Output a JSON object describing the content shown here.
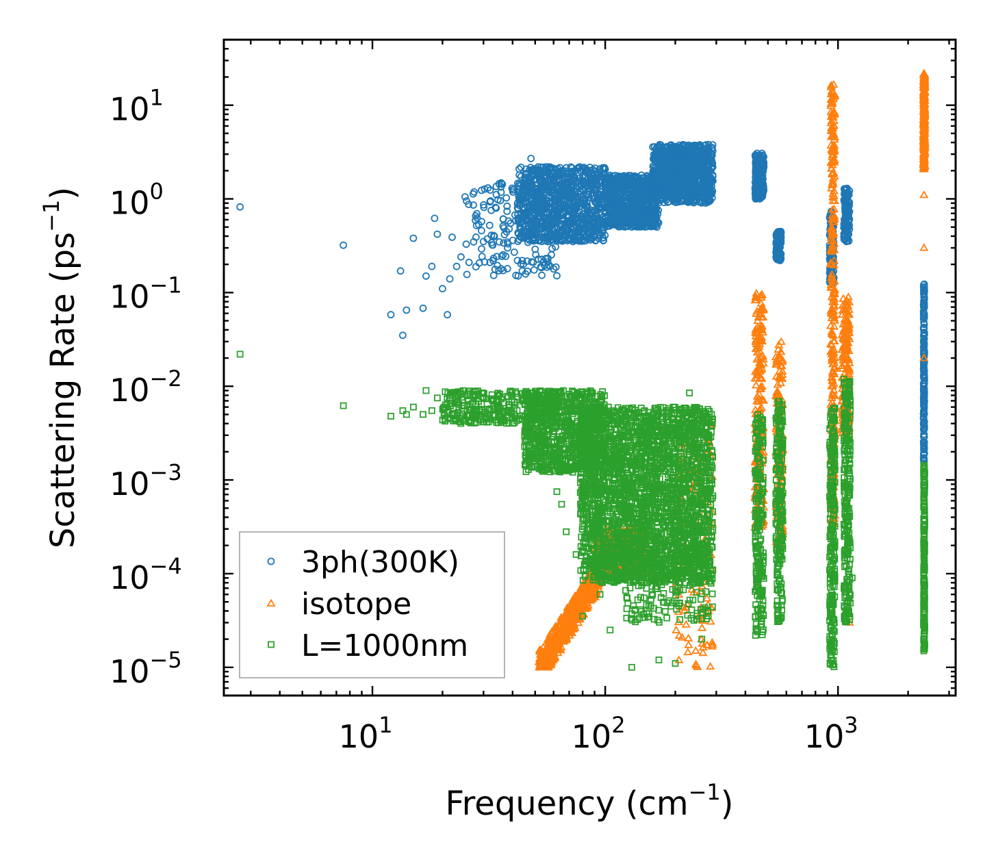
{
  "chart_data": {
    "type": "scatter",
    "title": "",
    "xlabel": {
      "text": "Frequency (cm",
      "sup": "−1",
      "suffix": ")"
    },
    "ylabel": {
      "text": "Scattering Rate (ps",
      "sup": "−1",
      "suffix": ")"
    },
    "xscale": "log",
    "yscale": "log",
    "xlim": [
      2.3,
      3200
    ],
    "ylim": [
      5e-06,
      50
    ],
    "xticks": [
      {
        "base": "10",
        "exp": "1",
        "value": 10
      },
      {
        "base": "10",
        "exp": "2",
        "value": 100
      },
      {
        "base": "10",
        "exp": "3",
        "value": 1000
      }
    ],
    "yticks": [
      {
        "base": "10",
        "exp": "−5",
        "value": 1e-05
      },
      {
        "base": "10",
        "exp": "−4",
        "value": 0.0001
      },
      {
        "base": "10",
        "exp": "−3",
        "value": 0.001
      },
      {
        "base": "10",
        "exp": "−2",
        "value": 0.01
      },
      {
        "base": "10",
        "exp": "−1",
        "value": 0.1
      },
      {
        "base": "10",
        "exp": "0",
        "value": 1
      },
      {
        "base": "10",
        "exp": "1",
        "value": 10
      }
    ],
    "legend_position": "lower-left",
    "series": [
      {
        "name": "3ph(300K)",
        "marker": "circle",
        "color": "#1f77b4",
        "points": [
          [
            2.7,
            0.82
          ],
          [
            7.5,
            0.32
          ],
          [
            12,
            0.058
          ],
          [
            13.2,
            0.17
          ],
          [
            13.5,
            0.035
          ],
          [
            14,
            0.065
          ],
          [
            15,
            0.38
          ],
          [
            16.5,
            0.068
          ],
          [
            17,
            0.15
          ],
          [
            18,
            0.19
          ],
          [
            18.5,
            0.62
          ],
          [
            19,
            0.42
          ],
          [
            20,
            0.11
          ],
          [
            21,
            0.058
          ],
          [
            21.5,
            0.14
          ],
          [
            22,
            0.39
          ],
          [
            23,
            0.19
          ],
          [
            24,
            0.24
          ],
          [
            25,
            1.05
          ],
          [
            26,
            0.21
          ],
          [
            28,
            0.52
          ],
          [
            30,
            0.35
          ],
          [
            32,
            0.21
          ],
          [
            35,
            1.45
          ],
          [
            38,
            0.18
          ],
          [
            40,
            1.25
          ],
          [
            42,
            0.22
          ],
          [
            44,
            0.17
          ],
          [
            48,
            2.7
          ],
          [
            50,
            0.29
          ]
        ],
        "clusters": [
          {
            "x": [
              25,
              62
            ],
            "y": [
              0.15,
              1.6
            ],
            "n": 160
          },
          {
            "x": [
              42,
              100
            ],
            "y": [
              0.35,
              2.2
            ],
            "n": 900
          },
          {
            "x": [
              100,
              170
            ],
            "y": [
              0.5,
              1.8
            ],
            "n": 700
          },
          {
            "x": [
              160,
              290
            ],
            "y": [
              0.9,
              3.8
            ],
            "n": 900
          },
          {
            "x": [
              440,
              480
            ],
            "y": [
              1.0,
              3.2
            ],
            "n": 150
          },
          {
            "x": [
              540,
              570
            ],
            "y": [
              0.22,
              0.45
            ],
            "n": 100
          },
          {
            "x": [
              920,
              960
            ],
            "y": [
              0.12,
              0.75
            ],
            "n": 120
          },
          {
            "x": [
              1060,
              1120
            ],
            "y": [
              0.35,
              1.3
            ],
            "n": 120
          },
          {
            "x": [
              2330,
              2350
            ],
            "y": [
              0.0015,
              0.13
            ],
            "n": 200
          }
        ]
      },
      {
        "name": "isotope",
        "marker": "triangle",
        "color": "#ff7f0e",
        "points": [
          [
            1120,
            3e-05
          ],
          [
            2340,
            0.02
          ],
          [
            2340,
            1.1
          ],
          [
            2340,
            0.3
          ]
        ],
        "clusters": [
          {
            "x": [
              52,
              95
            ],
            "y": [
              1e-05,
              0.0001
            ],
            "n": 500,
            "trend": "rising"
          },
          {
            "x": [
              90,
              150
            ],
            "y": [
              9e-05,
              0.0003
            ],
            "n": 300
          },
          {
            "x": [
              200,
              290
            ],
            "y": [
              1e-05,
              0.004
            ],
            "n": 150
          },
          {
            "x": [
              440,
              480
            ],
            "y": [
              0.0003,
              0.1
            ],
            "n": 200
          },
          {
            "x": [
              540,
              580
            ],
            "y": [
              0.0002,
              0.03
            ],
            "n": 150
          },
          {
            "x": [
              930,
              970
            ],
            "y": [
              0.0003,
              18
            ],
            "n": 300
          },
          {
            "x": [
              1040,
              1120
            ],
            "y": [
              0.003,
              0.09
            ],
            "n": 200
          },
          {
            "x": [
              2330,
              2360
            ],
            "y": [
              2,
              22
            ],
            "n": 250
          }
        ]
      },
      {
        "name": "L=1000nm",
        "marker": "square",
        "color": "#2ca02c",
        "points": [
          [
            2.7,
            0.022
          ],
          [
            7.5,
            0.0062
          ],
          [
            12,
            0.0048
          ],
          [
            13.5,
            0.0055
          ],
          [
            14,
            0.005
          ],
          [
            15,
            0.006
          ],
          [
            16.5,
            0.005
          ],
          [
            17,
            0.009
          ],
          [
            18,
            0.0055
          ],
          [
            19,
            0.0075
          ],
          [
            22,
            0.0085
          ],
          [
            62,
            0.00075
          ],
          [
            65,
            0.00055
          ],
          [
            68,
            0.00028
          ],
          [
            75,
            0.00016
          ],
          [
            80,
            3.5e-05
          ],
          [
            95,
            6e-05
          ],
          [
            105,
            2.5e-05
          ],
          [
            130,
            1e-05
          ],
          [
            170,
            1.2e-05
          ],
          [
            200,
            1.1e-05
          ],
          [
            230,
            0.0085
          ],
          [
            240,
            0.0001
          ],
          [
            260,
            2e-05
          ],
          [
            1150,
            9e-05
          ]
        ],
        "clusters": [
          {
            "x": [
              20,
              62
            ],
            "y": [
              0.004,
              0.009
            ],
            "n": 300
          },
          {
            "x": [
              45,
              100
            ],
            "y": [
              0.0012,
              0.009
            ],
            "n": 800
          },
          {
            "x": [
              78,
              290
            ],
            "y": [
              8e-05,
              0.006
            ],
            "n": 2600
          },
          {
            "x": [
              120,
              290
            ],
            "y": [
              3e-05,
              0.0002
            ],
            "n": 200
          },
          {
            "x": [
              440,
              480
            ],
            "y": [
              2e-05,
              0.005
            ],
            "n": 200
          },
          {
            "x": [
              540,
              580
            ],
            "y": [
              3e-05,
              0.007
            ],
            "n": 200
          },
          {
            "x": [
              920,
              970
            ],
            "y": [
              1e-05,
              0.006
            ],
            "n": 250
          },
          {
            "x": [
              1060,
              1130
            ],
            "y": [
              3e-05,
              0.012
            ],
            "n": 250
          },
          {
            "x": [
              2330,
              2360
            ],
            "y": [
              1.5e-05,
              0.0015
            ],
            "n": 200
          }
        ]
      }
    ]
  }
}
